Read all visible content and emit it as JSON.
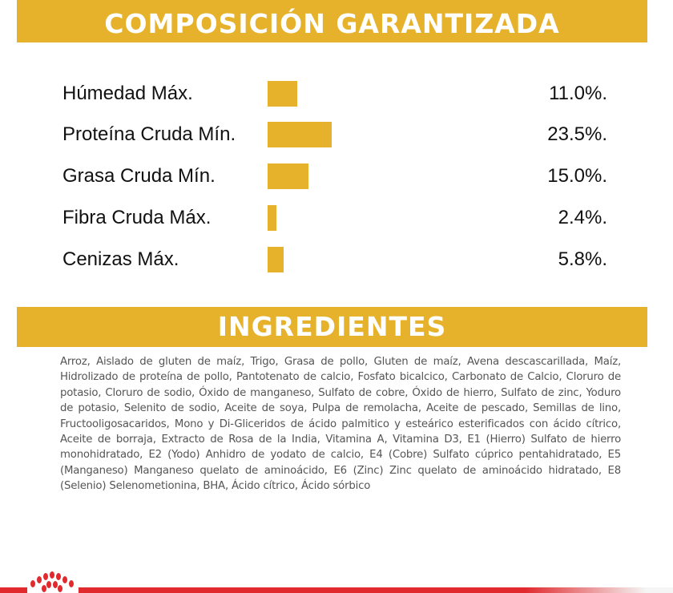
{
  "composition": {
    "title": "COMPOSICIÓN GARANTIZADA",
    "accent_color": "#e6b22c",
    "rows": [
      {
        "label": "Húmedad Máx.",
        "value": "11.0%.",
        "percent": 11.0
      },
      {
        "label": "Proteína Cruda Mín.",
        "value": "23.5%.",
        "percent": 23.5
      },
      {
        "label": "Grasa Cruda Mín.",
        "value": "15.0%.",
        "percent": 15.0
      },
      {
        "label": "Fibra Cruda Máx.",
        "value": "2.4%.",
        "percent": 2.4
      },
      {
        "label": "Cenizas Máx.",
        "value": "5.8%.",
        "percent": 5.8
      }
    ]
  },
  "ingredients": {
    "title": "INGREDIENTES",
    "text": "Arroz, Aislado de gluten de maíz, Trigo, Grasa de pollo, Gluten de maíz, Avena descascarillada, Maíz, Hidrolizado de proteína de pollo, Pantotenato de calcio, Fosfato bicalcico, Carbonato de Calcio, Cloruro de potasio, Cloruro de sodio, Óxido de manganeso, Sulfato de cobre, Óxido de hierro, Sulfato de zinc, Yoduro de potasio, Selenito de sodio, Aceite de soya, Pulpa de remolacha, Aceite de pescado, Semillas de lino, Fructooligosacaridos, Mono y Di-Gliceridos de ácido palmitico y esteárico esterificados con ácido cítrico, Aceite de borraja, Extracto de Rosa de la India, Vitamina A, Vitamina D3, E1 (Hierro) Sulfato de hierro monohidratado, E2 (Yodo) Anhidro de yodato de calcio, E4 (Cobre) Sulfato cúprico pentahidratado, E5 (Manganeso) Manganeso quelato de aminoácido, E6 (Zinc) Zinc quelato de aminoácido hidratado, E8 (Selenio) Selenometionina, BHA, Ácido cítrico, Ácido sórbico"
  },
  "footer": {
    "brand_color": "#e02a2e",
    "logo_icon": "crown-dots-logo"
  }
}
